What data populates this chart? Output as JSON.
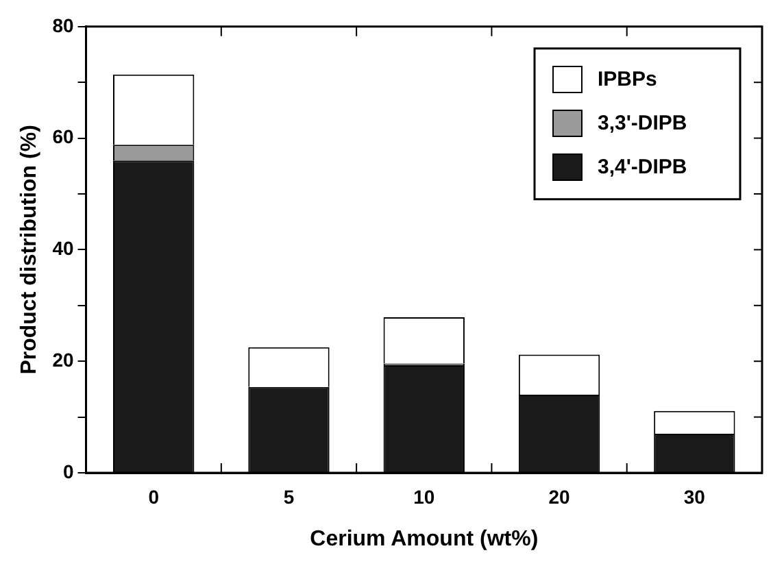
{
  "chart_data": {
    "type": "bar",
    "stacked": true,
    "xlabel": "Cerium Amount (wt%)",
    "ylabel": "Product distribution (%)",
    "categories": [
      "0",
      "5",
      "10",
      "20",
      "30"
    ],
    "series": [
      {
        "name": "3,4'-DIPB",
        "color": "#1a1a1a",
        "values": [
          56,
          15.4,
          19.3,
          14,
          7
        ]
      },
      {
        "name": "3,3'-DIPB",
        "color": "#9a9a9a",
        "values": [
          2.8,
          0,
          0.3,
          0,
          0
        ]
      },
      {
        "name": "IPBPs",
        "color": "#ffffff",
        "values": [
          12.6,
          7.1,
          8.3,
          7.2,
          4.1
        ]
      }
    ],
    "ylim": [
      0,
      80
    ],
    "yticks": [
      0,
      {
        "value": 10,
        "label": null
      },
      20,
      {
        "value": 30,
        "label": null
      },
      40,
      {
        "value": 50,
        "label": null
      },
      60,
      {
        "value": 70,
        "label": null
      },
      80
    ],
    "grid": false,
    "legend": "top right"
  }
}
